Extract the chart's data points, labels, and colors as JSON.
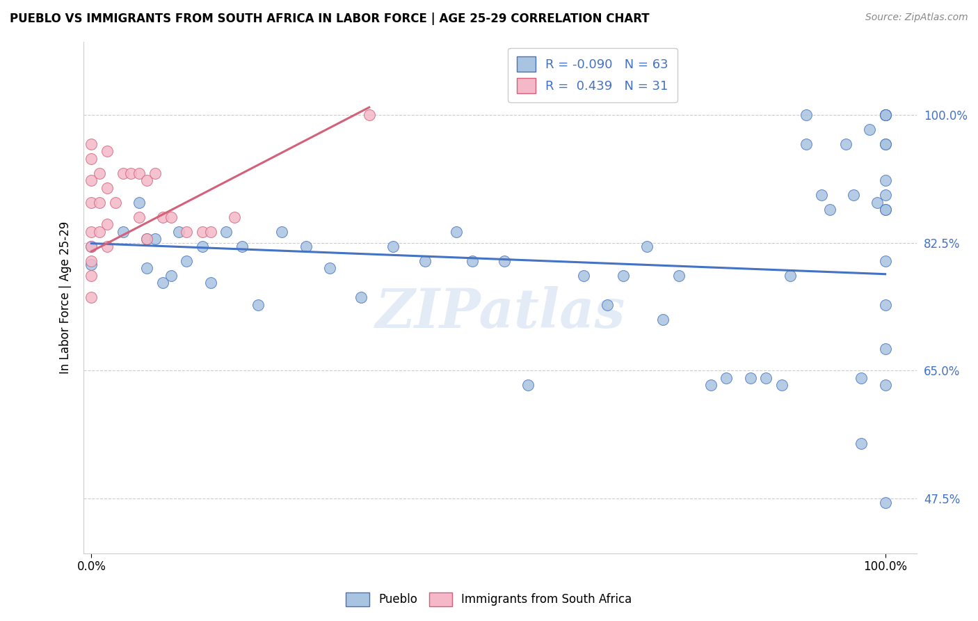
{
  "title": "PUEBLO VS IMMIGRANTS FROM SOUTH AFRICA IN LABOR FORCE | AGE 25-29 CORRELATION CHART",
  "source": "Source: ZipAtlas.com",
  "ylabel": "In Labor Force | Age 25-29",
  "legend_r_blue": "-0.090",
  "legend_n_blue": "63",
  "legend_r_pink": "0.439",
  "legend_n_pink": "31",
  "blue_color": "#a8c4e0",
  "pink_color": "#f4b8c8",
  "line_blue_color": "#4472c4",
  "line_pink_color": "#d4607a",
  "blue_scatter_x": [
    0.0,
    0.0,
    0.04,
    0.06,
    0.07,
    0.07,
    0.08,
    0.09,
    0.1,
    0.11,
    0.12,
    0.14,
    0.15,
    0.17,
    0.19,
    0.21,
    0.24,
    0.27,
    0.3,
    0.34,
    0.38,
    0.42,
    0.46,
    0.48,
    0.52,
    0.55,
    0.62,
    0.65,
    0.67,
    0.7,
    0.72,
    0.74,
    0.78,
    0.8,
    0.83,
    0.85,
    0.87,
    0.88,
    0.9,
    0.9,
    0.92,
    0.93,
    0.95,
    0.96,
    0.97,
    0.97,
    0.98,
    0.99,
    1.0,
    1.0,
    1.0,
    1.0,
    1.0,
    1.0,
    1.0,
    1.0,
    1.0,
    1.0,
    1.0,
    1.0,
    1.0,
    1.0,
    1.0
  ],
  "blue_scatter_y": [
    0.82,
    0.795,
    0.84,
    0.88,
    0.83,
    0.79,
    0.83,
    0.77,
    0.78,
    0.84,
    0.8,
    0.82,
    0.77,
    0.84,
    0.82,
    0.74,
    0.84,
    0.82,
    0.79,
    0.75,
    0.82,
    0.8,
    0.84,
    0.8,
    0.8,
    0.63,
    0.78,
    0.74,
    0.78,
    0.82,
    0.72,
    0.78,
    0.63,
    0.64,
    0.64,
    0.64,
    0.63,
    0.78,
    1.0,
    0.96,
    0.89,
    0.87,
    0.96,
    0.89,
    0.64,
    0.55,
    0.98,
    0.88,
    1.0,
    1.0,
    1.0,
    1.0,
    0.96,
    0.96,
    0.91,
    0.89,
    0.87,
    0.87,
    0.8,
    0.74,
    0.68,
    0.63,
    0.47
  ],
  "pink_scatter_x": [
    0.0,
    0.0,
    0.0,
    0.0,
    0.0,
    0.0,
    0.0,
    0.0,
    0.0,
    0.01,
    0.01,
    0.01,
    0.02,
    0.02,
    0.02,
    0.02,
    0.03,
    0.04,
    0.05,
    0.06,
    0.06,
    0.07,
    0.07,
    0.08,
    0.09,
    0.1,
    0.12,
    0.14,
    0.15,
    0.18,
    0.35
  ],
  "pink_scatter_y": [
    0.96,
    0.94,
    0.91,
    0.88,
    0.84,
    0.82,
    0.8,
    0.78,
    0.75,
    0.92,
    0.88,
    0.84,
    0.95,
    0.9,
    0.85,
    0.82,
    0.88,
    0.92,
    0.92,
    0.92,
    0.86,
    0.91,
    0.83,
    0.92,
    0.86,
    0.86,
    0.84,
    0.84,
    0.84,
    0.86,
    1.0
  ],
  "blue_line_x0": 0.0,
  "blue_line_x1": 1.0,
  "blue_line_y0": 0.824,
  "blue_line_y1": 0.782,
  "pink_line_x0": 0.0,
  "pink_line_x1": 0.35,
  "pink_line_y0": 0.813,
  "pink_line_y1": 1.01,
  "y_tick_positions": [
    0.475,
    0.65,
    0.825,
    1.0
  ],
  "y_tick_labels": [
    "47.5%",
    "65.0%",
    "82.5%",
    "100.0%"
  ],
  "xlim": [
    -0.01,
    1.04
  ],
  "ylim": [
    0.4,
    1.1
  ]
}
